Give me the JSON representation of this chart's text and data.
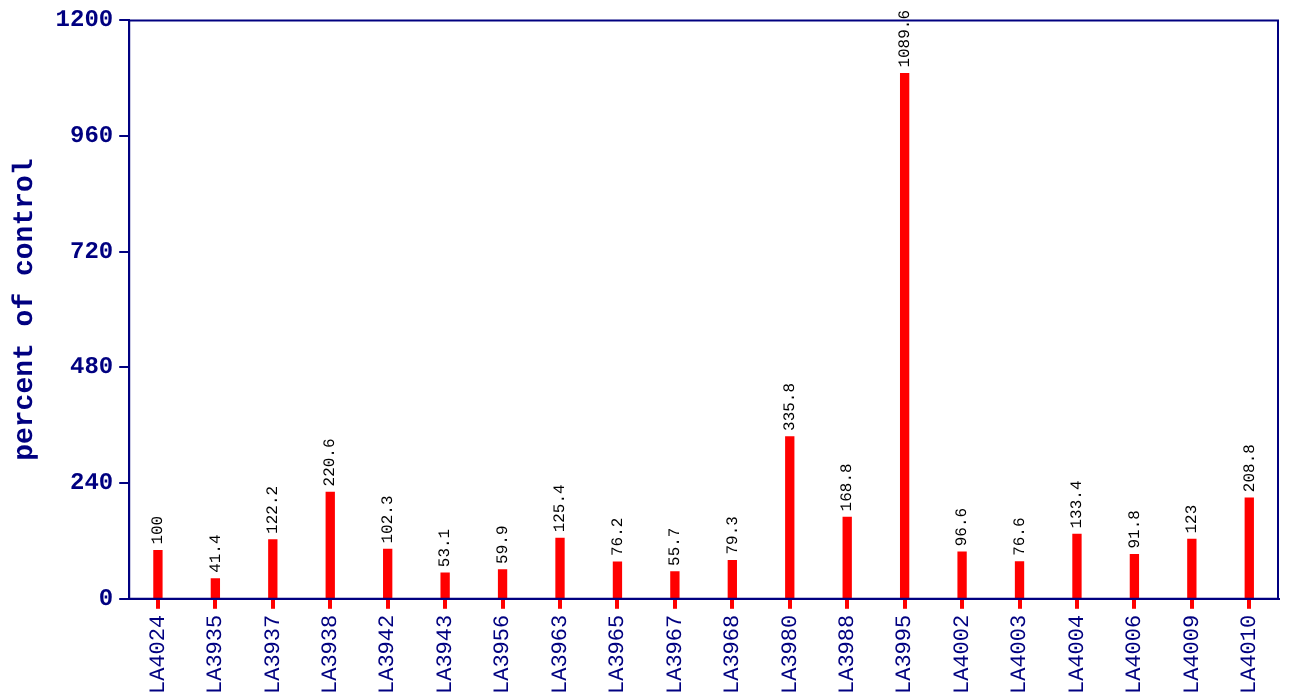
{
  "chart_data": {
    "type": "bar",
    "ylabel": "percent of control",
    "categories": [
      "LA4024",
      "LA3935",
      "LA3937",
      "LA3938",
      "LA3942",
      "LA3943",
      "LA3956",
      "LA3963",
      "LA3965",
      "LA3967",
      "LA3968",
      "LA3980",
      "LA3988",
      "LA3995",
      "LA4002",
      "LA4003",
      "LA4004",
      "LA4006",
      "LA4009",
      "LA4010"
    ],
    "values": [
      100,
      41.4,
      122.2,
      220.6,
      102.3,
      53.1,
      59.9,
      125.4,
      76.2,
      55.7,
      79.3,
      335.8,
      168.8,
      1089.6,
      96.6,
      76.6,
      133.4,
      91.8,
      123,
      208.8
    ],
    "color": "#ff0000",
    "ylim": [
      0,
      1200
    ],
    "yticks": [
      0,
      240,
      480,
      720,
      960,
      1200
    ],
    "grid": false,
    "data_labels": true
  }
}
